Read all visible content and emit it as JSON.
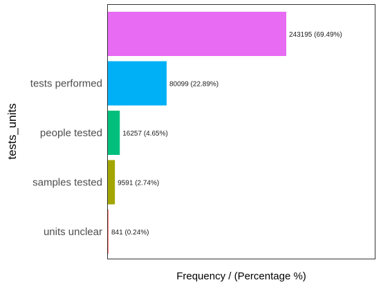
{
  "chart_data": {
    "type": "bar",
    "orientation": "horizontal",
    "xlabel": "Frequency / (Percentage %)",
    "ylabel": "tests_units",
    "categories": [
      "",
      "tests performed",
      "people tested",
      "samples tested",
      "units unclear"
    ],
    "values": [
      243195,
      80099,
      16257,
      9591,
      841
    ],
    "data_labels": [
      "243195 (69.49%)",
      "80099 (22.89%)",
      "16257 (4.65%)",
      "9591 (2.74%)",
      "841 (0.24%)"
    ],
    "colors": [
      "#E76BF3",
      "#00B0F6",
      "#00BF7D",
      "#A3A500",
      "#F8766D"
    ],
    "xlim": [
      0,
      243195
    ],
    "grid": false,
    "legend": "none"
  }
}
